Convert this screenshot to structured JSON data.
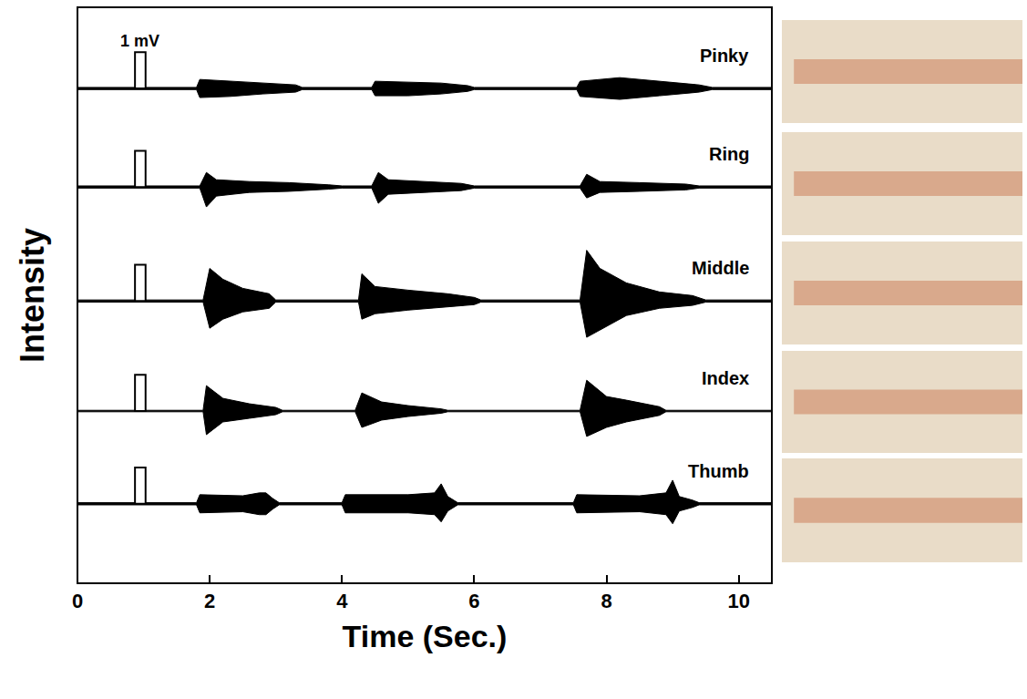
{
  "chart_data": {
    "type": "line",
    "xlabel": "Time (Sec.)",
    "ylabel": "Intensity",
    "xlim": [
      0,
      10.5
    ],
    "xticks": [
      0,
      2,
      4,
      6,
      8,
      10
    ],
    "ylim": [
      -1.2,
      1.5
    ],
    "tick_labels": "x",
    "grid": false,
    "scale_bar": {
      "label": "1 mV",
      "value": 1,
      "x": [
        0.87,
        1.03
      ]
    },
    "series": [
      {
        "name": "Pinky",
        "color": "#000000",
        "x": [
          0,
          1.8,
          1.85,
          2.3,
          2.8,
          3.3,
          3.4,
          4.45,
          4.5,
          5.0,
          5.5,
          5.9,
          6.0,
          7.55,
          7.6,
          8.2,
          8.8,
          9.4,
          9.6,
          10.5
        ],
        "upper": [
          0.03,
          0.03,
          0.25,
          0.2,
          0.15,
          0.1,
          0.03,
          0.03,
          0.2,
          0.18,
          0.15,
          0.08,
          0.03,
          0.03,
          0.2,
          0.3,
          0.2,
          0.1,
          0.03,
          0.03
        ],
        "lower": [
          -0.03,
          -0.03,
          -0.25,
          -0.22,
          -0.15,
          -0.1,
          -0.03,
          -0.03,
          -0.2,
          -0.2,
          -0.15,
          -0.08,
          -0.03,
          -0.03,
          -0.22,
          -0.3,
          -0.2,
          -0.1,
          -0.03,
          -0.03
        ]
      },
      {
        "name": "Ring",
        "color": "#000000",
        "x": [
          0,
          1.85,
          1.95,
          2.1,
          2.6,
          3.2,
          3.8,
          4.0,
          4.45,
          4.55,
          4.7,
          5.2,
          5.8,
          6.0,
          7.6,
          7.7,
          7.9,
          8.5,
          9.2,
          9.4,
          10.5
        ],
        "upper": [
          0.03,
          0.03,
          0.4,
          0.2,
          0.15,
          0.12,
          0.06,
          0.03,
          0.03,
          0.4,
          0.2,
          0.15,
          0.1,
          0.03,
          0.03,
          0.35,
          0.15,
          0.12,
          0.08,
          0.03,
          0.03
        ],
        "lower": [
          -0.03,
          -0.03,
          -0.55,
          -0.25,
          -0.15,
          -0.12,
          -0.06,
          -0.03,
          -0.03,
          -0.45,
          -0.2,
          -0.15,
          -0.1,
          -0.03,
          -0.03,
          -0.3,
          -0.15,
          -0.12,
          -0.08,
          -0.03,
          -0.03
        ]
      },
      {
        "name": "Middle",
        "color": "#000000",
        "x": [
          0,
          1.9,
          2.0,
          2.2,
          2.5,
          2.9,
          3.0,
          4.25,
          4.3,
          4.5,
          5.0,
          5.6,
          6.0,
          6.1,
          7.6,
          7.7,
          7.9,
          8.3,
          8.8,
          9.3,
          9.5,
          10.5
        ],
        "upper": [
          0.03,
          0.03,
          0.9,
          0.6,
          0.35,
          0.2,
          0.03,
          0.03,
          0.75,
          0.4,
          0.3,
          0.2,
          0.1,
          0.03,
          0.03,
          1.4,
          0.9,
          0.5,
          0.25,
          0.15,
          0.03,
          0.03
        ],
        "lower": [
          -0.03,
          -0.03,
          -0.75,
          -0.5,
          -0.3,
          -0.2,
          -0.03,
          -0.03,
          -0.5,
          -0.35,
          -0.25,
          -0.15,
          -0.1,
          -0.03,
          -0.03,
          -1.0,
          -0.8,
          -0.4,
          -0.2,
          -0.12,
          -0.03,
          -0.03
        ]
      },
      {
        "name": "Index",
        "color": "#000000",
        "x": [
          0,
          1.9,
          1.95,
          2.2,
          2.6,
          3.0,
          3.1,
          4.2,
          4.3,
          4.6,
          5.0,
          5.5,
          5.6,
          7.6,
          7.7,
          8.0,
          8.3,
          8.8,
          8.9,
          10.5
        ],
        "upper": [
          0.02,
          0.02,
          0.7,
          0.35,
          0.2,
          0.1,
          0.02,
          0.02,
          0.5,
          0.25,
          0.15,
          0.06,
          0.02,
          0.02,
          0.85,
          0.4,
          0.3,
          0.12,
          0.02,
          0.02
        ],
        "lower": [
          -0.02,
          -0.02,
          -0.65,
          -0.3,
          -0.2,
          -0.1,
          -0.02,
          -0.02,
          -0.45,
          -0.25,
          -0.15,
          -0.06,
          -0.02,
          -0.02,
          -0.7,
          -0.45,
          -0.3,
          -0.12,
          -0.02,
          -0.02
        ]
      },
      {
        "name": "Thumb",
        "color": "#000000",
        "x": [
          0,
          1.8,
          1.85,
          2.5,
          2.75,
          2.85,
          2.95,
          3.05,
          4.0,
          4.05,
          5.0,
          5.4,
          5.5,
          5.6,
          5.75,
          7.5,
          7.55,
          8.5,
          8.9,
          9.0,
          9.1,
          9.3,
          9.4,
          10.5
        ],
        "upper": [
          0.03,
          0.03,
          0.25,
          0.22,
          0.3,
          0.3,
          0.15,
          0.03,
          0.03,
          0.25,
          0.25,
          0.3,
          0.55,
          0.2,
          0.03,
          0.03,
          0.25,
          0.22,
          0.3,
          0.65,
          0.2,
          0.1,
          0.03,
          0.03
        ],
        "lower": [
          -0.03,
          -0.03,
          -0.25,
          -0.22,
          -0.3,
          -0.3,
          -0.15,
          -0.03,
          -0.03,
          -0.25,
          -0.25,
          -0.3,
          -0.5,
          -0.2,
          -0.03,
          -0.03,
          -0.25,
          -0.22,
          -0.3,
          -0.55,
          -0.2,
          -0.1,
          -0.03,
          -0.03
        ]
      }
    ]
  }
}
